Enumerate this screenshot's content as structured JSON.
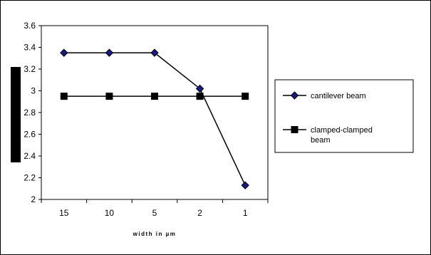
{
  "chart_data": {
    "type": "line",
    "title": "",
    "xlabel": "width in µm",
    "ylabel": "",
    "categories": [
      "15",
      "10",
      "5",
      "2",
      "1"
    ],
    "ylim": [
      2,
      3.6
    ],
    "yticks": [
      "3.6",
      "3.4",
      "3.2",
      "3",
      "2.8",
      "2.6",
      "2.4",
      "2.2",
      "2"
    ],
    "grid": false,
    "legend_position": "right",
    "series": [
      {
        "name": "cantilever beam",
        "values": [
          3.35,
          3.35,
          3.35,
          3.02,
          2.13
        ],
        "marker": "diamond",
        "line_color": "#000000",
        "marker_color": "#1a1a80"
      },
      {
        "name": "clamped-clamped beam",
        "legend_lines": [
          "clamped-clamped",
          "beam"
        ],
        "values": [
          2.95,
          2.95,
          2.95,
          2.95,
          2.95
        ],
        "marker": "square",
        "line_color": "#000000",
        "marker_color": "#000000"
      }
    ]
  }
}
